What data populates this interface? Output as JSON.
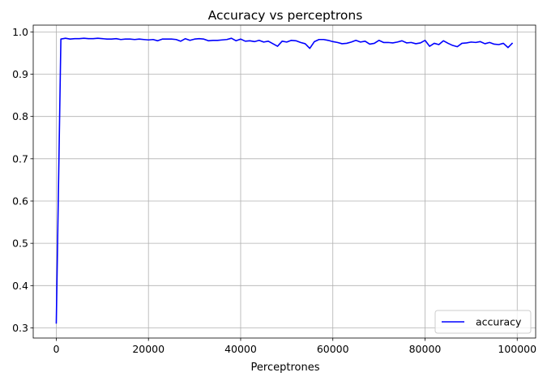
{
  "chart_data": {
    "type": "line",
    "title": "Accuracy vs perceptrons",
    "xlabel": "Perceptrones",
    "ylabel": "",
    "xlim": [
      -5000,
      104000
    ],
    "ylim": [
      0.276,
      1.016
    ],
    "xticks": [
      0,
      20000,
      40000,
      60000,
      80000,
      100000
    ],
    "yticks": [
      0.3,
      0.4,
      0.5,
      0.6,
      0.7,
      0.8,
      0.9,
      1.0
    ],
    "xtick_labels": [
      "0",
      "20000",
      "40000",
      "60000",
      "80000",
      "100000"
    ],
    "ytick_labels": [
      "0.3",
      "0.4",
      "0.5",
      "0.6",
      "0.7",
      "0.8",
      "0.9",
      "1.0"
    ],
    "grid": true,
    "legend_position": "bottom-right",
    "series": [
      {
        "name": "accuracy",
        "color": "#0000ff",
        "x": [
          0,
          1000,
          2000,
          3000,
          4000,
          5000,
          6000,
          7000,
          8000,
          9000,
          10000,
          11000,
          12000,
          13000,
          14000,
          15000,
          16000,
          17000,
          18000,
          19000,
          20000,
          21000,
          22000,
          23000,
          24000,
          25000,
          26000,
          27000,
          28000,
          29000,
          30000,
          31000,
          32000,
          33000,
          34000,
          35000,
          36000,
          37000,
          38000,
          39000,
          40000,
          41000,
          42000,
          43000,
          44000,
          45000,
          46000,
          47000,
          48000,
          49000,
          50000,
          51000,
          52000,
          53000,
          54000,
          55000,
          56000,
          57000,
          58000,
          59000,
          60000,
          61000,
          62000,
          63000,
          64000,
          65000,
          66000,
          67000,
          68000,
          69000,
          70000,
          71000,
          72000,
          73000,
          74000,
          75000,
          76000,
          77000,
          78000,
          79000,
          80000,
          81000,
          82000,
          83000,
          84000,
          85000,
          86000,
          87000,
          88000,
          89000,
          90000,
          91000,
          92000,
          93000,
          94000,
          95000,
          96000,
          97000,
          98000,
          99000
        ],
        "y": [
          0.31,
          0.983,
          0.985,
          0.983,
          0.984,
          0.984,
          0.985,
          0.984,
          0.984,
          0.985,
          0.984,
          0.983,
          0.983,
          0.984,
          0.982,
          0.983,
          0.983,
          0.982,
          0.983,
          0.982,
          0.981,
          0.982,
          0.979,
          0.983,
          0.983,
          0.983,
          0.982,
          0.978,
          0.984,
          0.98,
          0.983,
          0.984,
          0.983,
          0.979,
          0.98,
          0.98,
          0.981,
          0.982,
          0.985,
          0.979,
          0.983,
          0.978,
          0.979,
          0.977,
          0.98,
          0.976,
          0.978,
          0.972,
          0.966,
          0.978,
          0.976,
          0.98,
          0.979,
          0.975,
          0.972,
          0.961,
          0.977,
          0.982,
          0.982,
          0.98,
          0.977,
          0.975,
          0.972,
          0.973,
          0.976,
          0.98,
          0.976,
          0.978,
          0.971,
          0.973,
          0.98,
          0.975,
          0.975,
          0.974,
          0.976,
          0.979,
          0.974,
          0.975,
          0.972,
          0.974,
          0.98,
          0.966,
          0.973,
          0.97,
          0.979,
          0.973,
          0.968,
          0.965,
          0.973,
          0.974,
          0.976,
          0.975,
          0.977,
          0.972,
          0.975,
          0.971,
          0.97,
          0.973,
          0.963,
          0.974
        ]
      }
    ]
  }
}
